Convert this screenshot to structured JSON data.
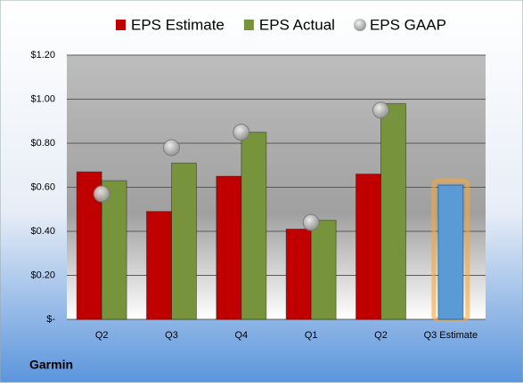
{
  "chart_data": {
    "type": "bar",
    "title": "Garmin",
    "categories": [
      "Q2",
      "Q3",
      "Q4",
      "Q1",
      "Q2",
      "Q3 Estimate"
    ],
    "series": [
      {
        "name": "EPS Estimate",
        "color": "#c00000",
        "colors": [
          "#c00000",
          "#c00000",
          "#c00000",
          "#c00000",
          "#c00000",
          "#5b9bd5"
        ],
        "highlight_glow": "#f5a640",
        "values": [
          0.67,
          0.49,
          0.65,
          0.41,
          0.66,
          0.61
        ]
      },
      {
        "name": "EPS Actual",
        "color": "#77933c",
        "values": [
          0.63,
          0.71,
          0.85,
          0.45,
          0.98,
          null
        ]
      },
      {
        "name": "EPS GAAP",
        "color": "#a6a6a6",
        "marker": "bubble",
        "values": [
          0.57,
          0.78,
          0.85,
          0.44,
          0.95,
          null
        ]
      }
    ],
    "ylim": [
      0,
      1.2
    ],
    "yticks": [
      {
        "value": 0,
        "label": "$-"
      },
      {
        "value": 0.2,
        "label": "$0.20"
      },
      {
        "value": 0.4,
        "label": "$0.40"
      },
      {
        "value": 0.6,
        "label": "$0.60"
      },
      {
        "value": 0.8,
        "label": "$0.80"
      },
      {
        "value": 1.0,
        "label": "$1.00"
      },
      {
        "value": 1.2,
        "label": "$1.20"
      }
    ],
    "grid": true
  }
}
